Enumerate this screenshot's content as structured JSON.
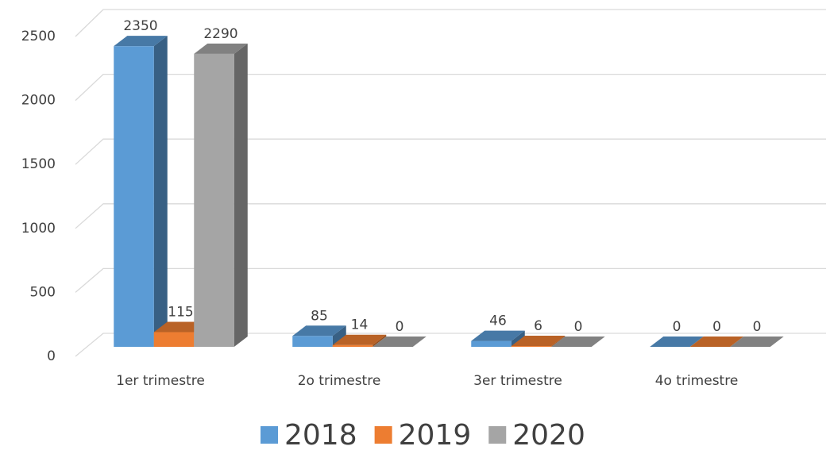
{
  "chart_data": {
    "type": "bar3d",
    "categories": [
      "1er trimestre",
      "2o trimestre",
      "3er trimestre",
      "4o trimestre"
    ],
    "series": [
      {
        "name": "2018",
        "color": "#5b9bd5",
        "values": [
          2350,
          85,
          46,
          0
        ]
      },
      {
        "name": "2019",
        "color": "#ed7d31",
        "values": [
          115,
          14,
          6,
          0
        ]
      },
      {
        "name": "2020",
        "color": "#a5a5a5",
        "values": [
          2290,
          0,
          0,
          0
        ]
      }
    ],
    "ylim": [
      0,
      2500
    ],
    "yticks": [
      0,
      500,
      1000,
      1500,
      2000,
      2500
    ],
    "grid": true,
    "legend": "bottom"
  }
}
